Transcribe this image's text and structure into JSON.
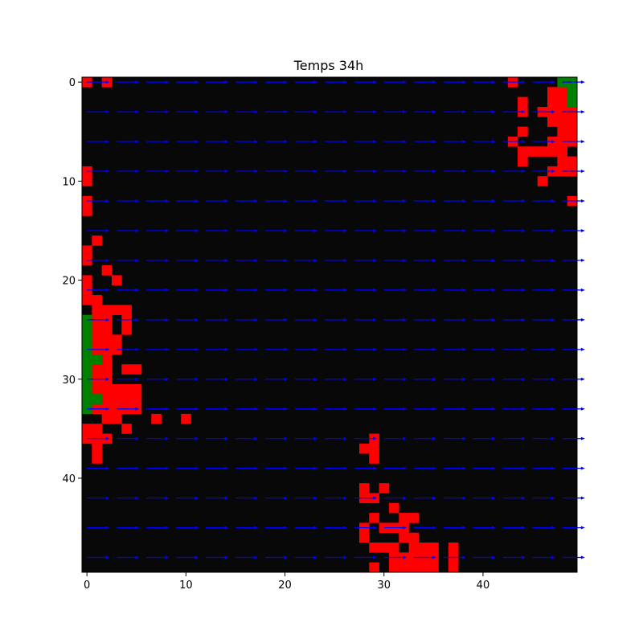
{
  "chart_data": {
    "type": "heatmap",
    "title": "Temps 34h",
    "xlabel": "",
    "ylabel": "",
    "grid_size": 50,
    "xlim": [
      -0.5,
      49.5
    ],
    "ylim": [
      49.5,
      -0.5
    ],
    "x_ticks": [
      0,
      10,
      20,
      30,
      40
    ],
    "y_ticks": [
      0,
      10,
      20,
      30,
      40
    ],
    "grid": false,
    "colors": {
      "background": "#080808",
      "burning": "#ff0000",
      "vegetation": "#008000",
      "arrow": "#0000ff",
      "frame": "#000000"
    },
    "red_cells": [
      [
        0,
        0
      ],
      [
        0,
        2
      ],
      [
        0,
        43
      ],
      [
        1,
        47
      ],
      [
        1,
        48
      ],
      [
        2,
        44
      ],
      [
        2,
        47
      ],
      [
        2,
        48
      ],
      [
        3,
        44
      ],
      [
        3,
        46
      ],
      [
        3,
        47
      ],
      [
        3,
        48
      ],
      [
        3,
        49
      ],
      [
        4,
        47
      ],
      [
        4,
        48
      ],
      [
        4,
        49
      ],
      [
        5,
        44
      ],
      [
        5,
        48
      ],
      [
        5,
        49
      ],
      [
        6,
        43
      ],
      [
        6,
        47
      ],
      [
        6,
        48
      ],
      [
        6,
        49
      ],
      [
        7,
        44
      ],
      [
        7,
        45
      ],
      [
        7,
        46
      ],
      [
        7,
        47
      ],
      [
        7,
        48
      ],
      [
        8,
        44
      ],
      [
        8,
        48
      ],
      [
        8,
        49
      ],
      [
        9,
        0
      ],
      [
        9,
        47
      ],
      [
        9,
        48
      ],
      [
        9,
        49
      ],
      [
        10,
        0
      ],
      [
        10,
        46
      ],
      [
        12,
        0
      ],
      [
        12,
        49
      ],
      [
        13,
        0
      ],
      [
        16,
        1
      ],
      [
        17,
        0
      ],
      [
        18,
        0
      ],
      [
        19,
        2
      ],
      [
        20,
        0
      ],
      [
        20,
        3
      ],
      [
        21,
        0
      ],
      [
        22,
        0
      ],
      [
        22,
        1
      ],
      [
        23,
        1
      ],
      [
        23,
        2
      ],
      [
        23,
        3
      ],
      [
        23,
        4
      ],
      [
        24,
        1
      ],
      [
        24,
        2
      ],
      [
        24,
        4
      ],
      [
        25,
        1
      ],
      [
        25,
        2
      ],
      [
        25,
        4
      ],
      [
        26,
        1
      ],
      [
        26,
        2
      ],
      [
        26,
        3
      ],
      [
        27,
        1
      ],
      [
        27,
        2
      ],
      [
        27,
        3
      ],
      [
        28,
        1
      ],
      [
        28,
        2
      ],
      [
        29,
        1
      ],
      [
        29,
        2
      ],
      [
        29,
        4
      ],
      [
        29,
        5
      ],
      [
        30,
        1
      ],
      [
        30,
        2
      ],
      [
        31,
        1
      ],
      [
        31,
        2
      ],
      [
        31,
        3
      ],
      [
        31,
        4
      ],
      [
        31,
        5
      ],
      [
        32,
        2
      ],
      [
        32,
        3
      ],
      [
        32,
        4
      ],
      [
        32,
        5
      ],
      [
        33,
        1
      ],
      [
        33,
        2
      ],
      [
        33,
        3
      ],
      [
        33,
        4
      ],
      [
        33,
        5
      ],
      [
        34,
        2
      ],
      [
        34,
        3
      ],
      [
        34,
        7
      ],
      [
        34,
        10
      ],
      [
        35,
        0
      ],
      [
        35,
        1
      ],
      [
        35,
        4
      ],
      [
        36,
        0
      ],
      [
        36,
        1
      ],
      [
        36,
        2
      ],
      [
        36,
        29
      ],
      [
        37,
        1
      ],
      [
        37,
        28
      ],
      [
        37,
        29
      ],
      [
        38,
        1
      ],
      [
        38,
        29
      ],
      [
        41,
        28
      ],
      [
        41,
        30
      ],
      [
        42,
        28
      ],
      [
        42,
        29
      ],
      [
        43,
        31
      ],
      [
        44,
        29
      ],
      [
        44,
        32
      ],
      [
        44,
        33
      ],
      [
        45,
        28
      ],
      [
        45,
        30
      ],
      [
        45,
        31
      ],
      [
        45,
        32
      ],
      [
        46,
        28
      ],
      [
        46,
        32
      ],
      [
        46,
        33
      ],
      [
        47,
        29
      ],
      [
        47,
        30
      ],
      [
        47,
        31
      ],
      [
        47,
        33
      ],
      [
        47,
        34
      ],
      [
        47,
        35
      ],
      [
        47,
        37
      ],
      [
        48,
        31
      ],
      [
        48,
        32
      ],
      [
        48,
        33
      ],
      [
        48,
        34
      ],
      [
        48,
        35
      ],
      [
        48,
        37
      ],
      [
        49,
        29
      ],
      [
        49,
        31
      ],
      [
        49,
        32
      ],
      [
        49,
        33
      ],
      [
        49,
        34
      ],
      [
        49,
        35
      ],
      [
        49,
        37
      ]
    ],
    "green_cells": [
      [
        0,
        48
      ],
      [
        0,
        49
      ],
      [
        1,
        49
      ],
      [
        2,
        49
      ],
      [
        24,
        0
      ],
      [
        25,
        0
      ],
      [
        26,
        0
      ],
      [
        27,
        0
      ],
      [
        28,
        0
      ],
      [
        29,
        0
      ],
      [
        30,
        0
      ],
      [
        31,
        0
      ],
      [
        32,
        0
      ],
      [
        33,
        0
      ],
      [
        28,
        1
      ],
      [
        32,
        1
      ]
    ],
    "wind_vector": {
      "direction": "east",
      "u": 1,
      "v": 0
    },
    "arrow_rows": [
      0,
      3,
      6,
      9,
      12,
      15,
      18,
      21,
      24,
      27,
      30,
      33,
      36,
      39,
      42,
      45,
      48
    ],
    "arrow_cols": [
      0,
      3,
      6,
      9,
      12,
      15,
      18,
      21,
      24,
      27,
      30,
      33,
      36,
      39,
      42,
      45,
      48
    ]
  }
}
